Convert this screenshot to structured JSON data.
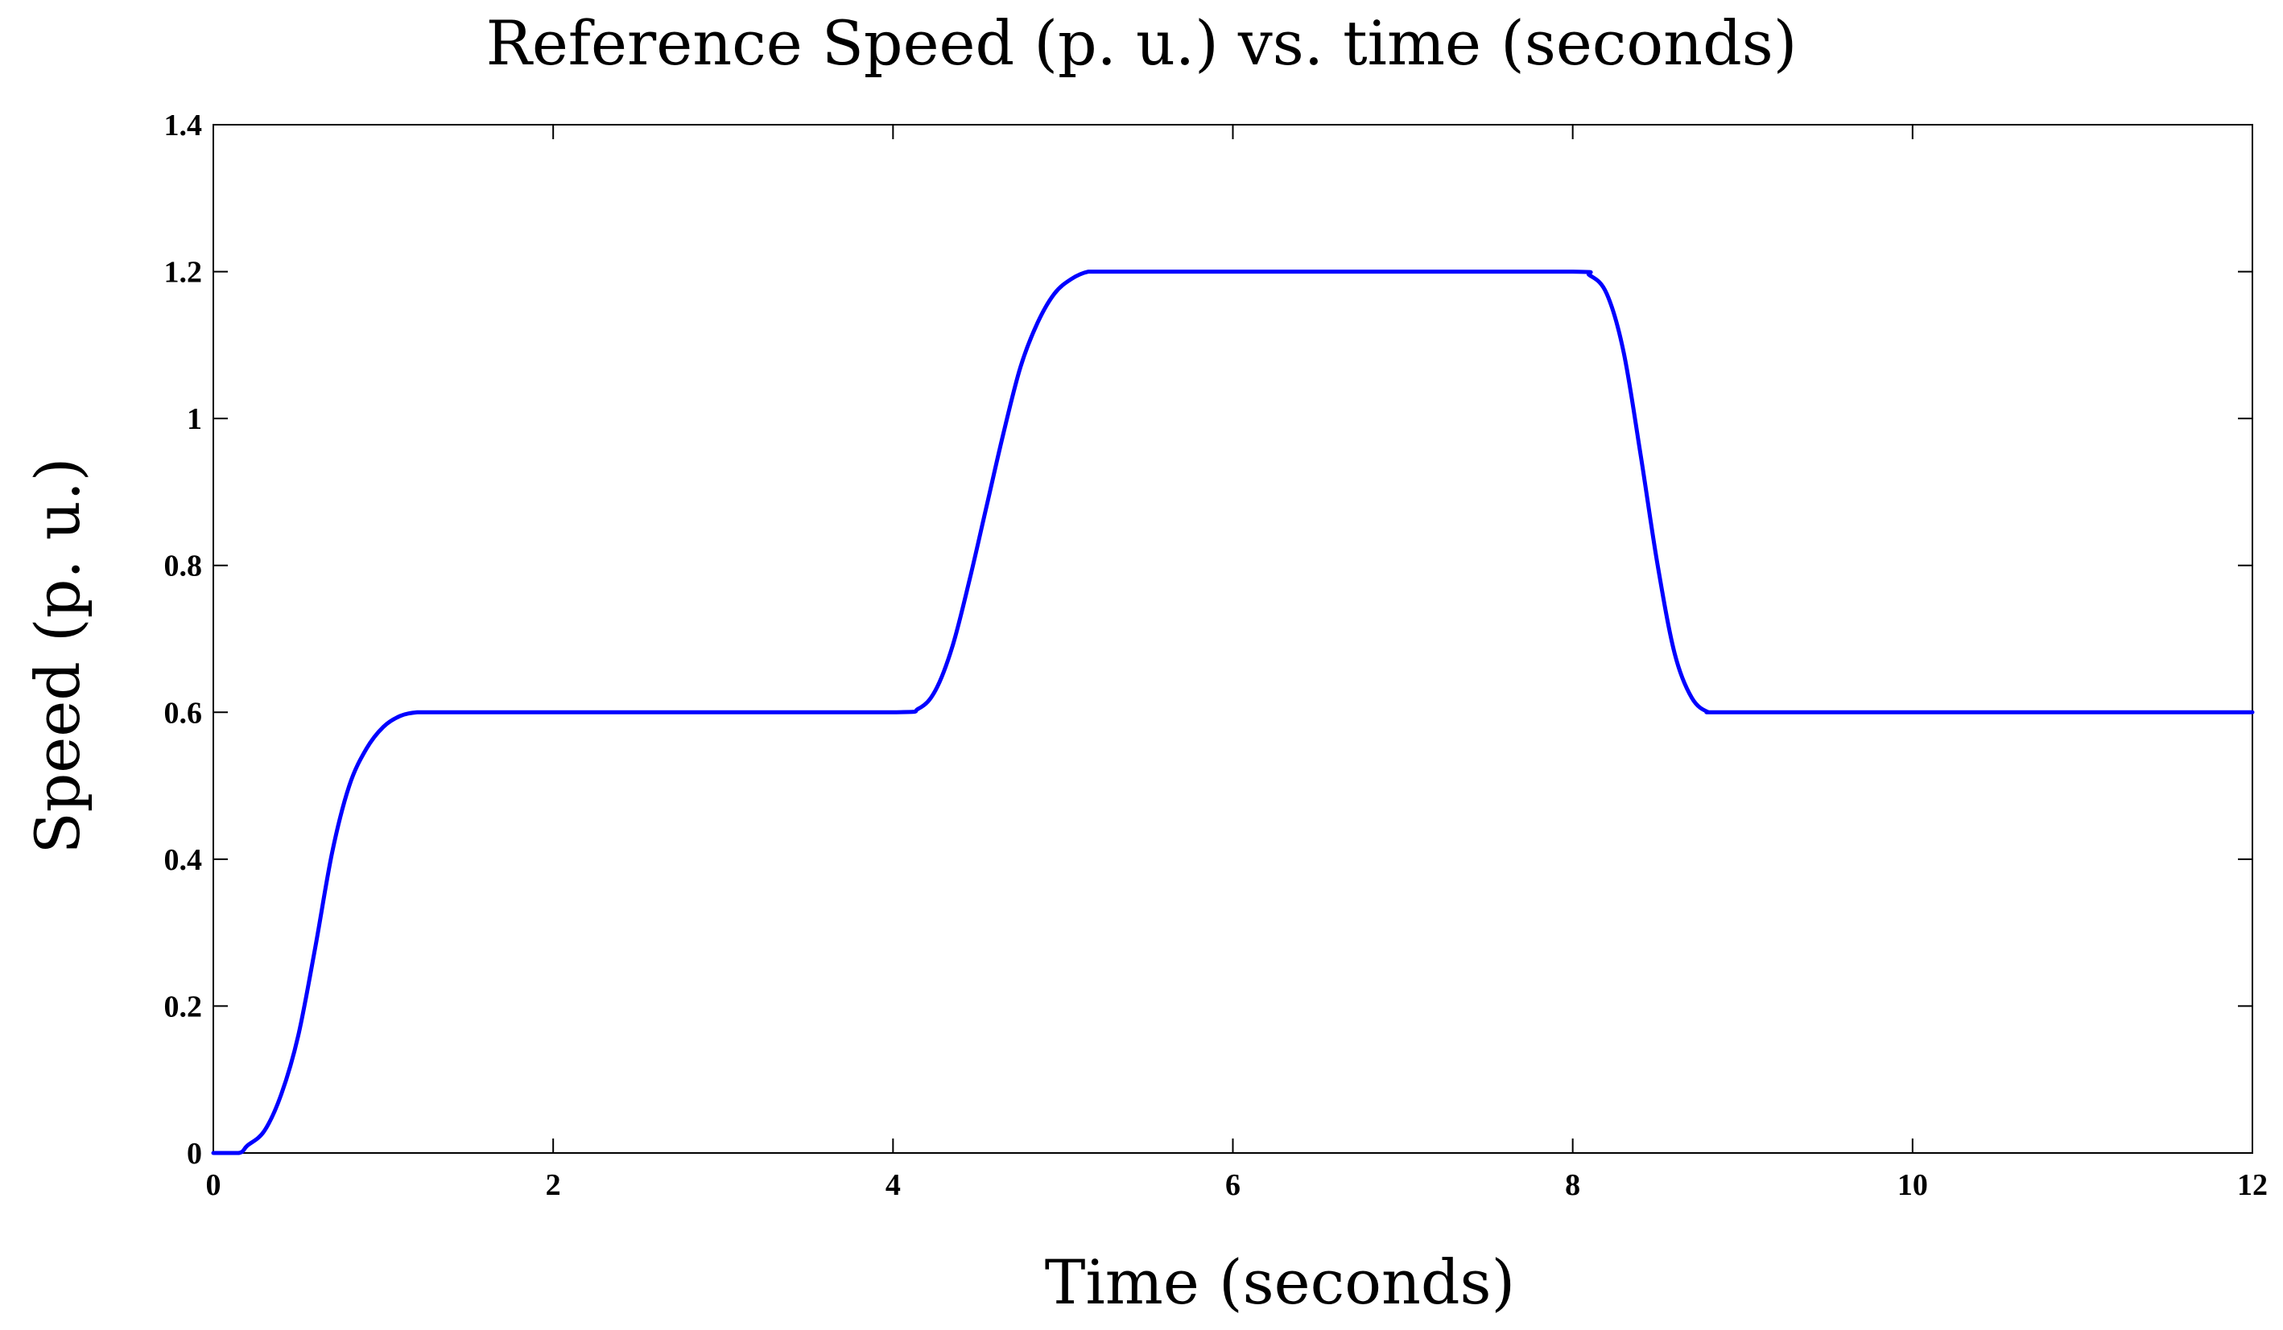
{
  "chart_data": {
    "type": "line",
    "title": "Reference Speed (p. u.) vs. time (seconds)",
    "xlabel": "Time (seconds)",
    "ylabel": "Speed (p. u.)",
    "xlim": [
      0,
      12
    ],
    "ylim": [
      0,
      1.4
    ],
    "x_ticks": [
      0,
      2,
      4,
      6,
      8,
      10,
      12
    ],
    "x_tick_labels": [
      "0",
      "2",
      "4",
      "6",
      "8",
      "10",
      "12"
    ],
    "y_ticks": [
      0,
      0.2,
      0.4,
      0.6,
      0.8,
      1.0,
      1.2,
      1.4
    ],
    "y_tick_labels": [
      "0",
      "0.2",
      "0.4",
      "0.6",
      "0.8",
      "1",
      "1.2",
      "1.4"
    ],
    "grid": false,
    "line_color": "#0000ff",
    "series": [
      {
        "x": [
          0,
          0.15,
          0.2,
          0.3,
          0.4,
          0.5,
          0.6,
          0.7,
          0.8,
          0.9,
          1.0,
          1.1,
          1.2,
          1.3,
          2.0,
          3.0,
          4.0,
          4.15,
          4.25,
          4.35,
          4.45,
          4.55,
          4.65,
          4.75,
          4.85,
          4.95,
          5.05,
          5.15,
          5.25,
          5.35,
          6.0,
          7.0,
          8.0,
          8.1,
          8.2,
          8.3,
          8.4,
          8.5,
          8.6,
          8.7,
          8.8,
          8.9,
          10.0,
          12.0
        ],
        "y": [
          0,
          0,
          0.01,
          0.03,
          0.08,
          0.16,
          0.28,
          0.41,
          0.5,
          0.55,
          0.58,
          0.595,
          0.6,
          0.6,
          0.6,
          0.6,
          0.6,
          0.605,
          0.63,
          0.69,
          0.78,
          0.88,
          0.98,
          1.07,
          1.13,
          1.17,
          1.19,
          1.2,
          1.2,
          1.2,
          1.2,
          1.2,
          1.2,
          1.195,
          1.17,
          1.09,
          0.95,
          0.8,
          0.68,
          0.62,
          0.6,
          0.6,
          0.6,
          0.6
        ]
      }
    ]
  }
}
